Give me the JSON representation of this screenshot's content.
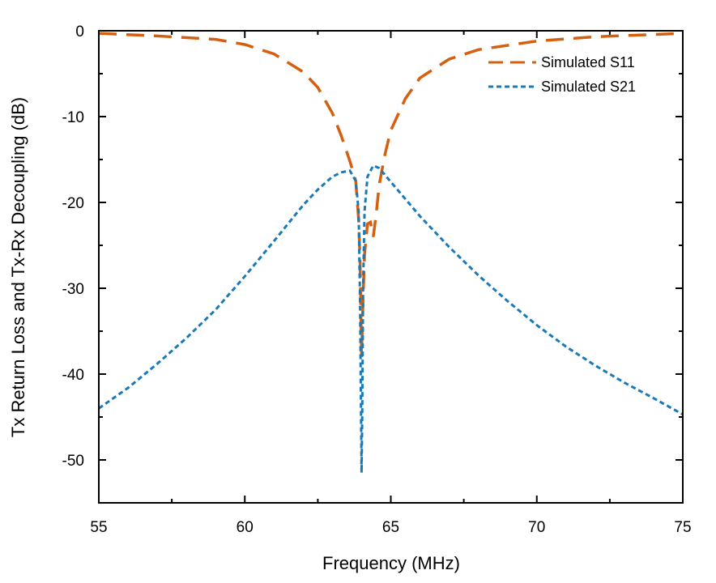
{
  "chart_data": {
    "type": "line",
    "title": "",
    "xlabel": "Frequency (MHz)",
    "ylabel": "Tx Return Loss and Tx-Rx Decoupling (dB)",
    "xlim": [
      55,
      75
    ],
    "ylim": [
      -55,
      0
    ],
    "xticks": [
      55,
      60,
      65,
      70,
      75
    ],
    "xtick_labels": [
      "55",
      "60",
      "65",
      "70",
      "75"
    ],
    "yticks": [
      0,
      -10,
      -20,
      -30,
      -40,
      -50
    ],
    "ytick_labels": [
      "0",
      "-10",
      "-20",
      "-30",
      "-40",
      "-50"
    ],
    "grid": false,
    "legend_position": "top-right",
    "series": [
      {
        "name": "Simulated S11",
        "color": "#d45f0f",
        "dash": "long-dash",
        "x": [
          55,
          57,
          59,
          60,
          61,
          62,
          62.5,
          63,
          63.3,
          63.6,
          63.8,
          63.9,
          63.95,
          64.0,
          64.05,
          64.1,
          64.2,
          64.3,
          64.4,
          64.5,
          64.6,
          64.8,
          65,
          65.5,
          66,
          67,
          68,
          70,
          72,
          75
        ],
        "values": [
          -0.3,
          -0.6,
          -1.0,
          -1.6,
          -2.7,
          -4.8,
          -6.6,
          -9.6,
          -12.2,
          -15.2,
          -17.5,
          -22,
          -27,
          -38,
          -31,
          -26,
          -22.5,
          -22.3,
          -24,
          -21.3,
          -18,
          -14.4,
          -11.6,
          -7.9,
          -5.5,
          -3.3,
          -2.2,
          -1.2,
          -0.7,
          -0.3
        ]
      },
      {
        "name": "Simulated S21",
        "color": "#1a7ab8",
        "dash": "short-dash",
        "x": [
          55,
          56,
          57,
          58,
          59,
          60,
          61,
          62,
          62.5,
          63,
          63.3,
          63.6,
          63.8,
          63.9,
          63.95,
          64.0,
          64.02,
          64.05,
          64.1,
          64.2,
          64.4,
          64.6,
          65,
          65.5,
          66,
          67,
          68,
          69,
          70,
          71,
          72,
          73,
          74,
          75
        ],
        "values": [
          -44,
          -41.6,
          -38.8,
          -35.8,
          -32.5,
          -28.6,
          -24.5,
          -20.3,
          -18.5,
          -17.0,
          -16.5,
          -16.3,
          -17.5,
          -21,
          -32,
          -51.5,
          -45,
          -30,
          -21,
          -17,
          -15.7,
          -16.0,
          -17.6,
          -19.6,
          -21.6,
          -25.2,
          -28.5,
          -31.5,
          -34.3,
          -36.8,
          -39.0,
          -41.0,
          -42.8,
          -44.7
        ]
      }
    ]
  }
}
